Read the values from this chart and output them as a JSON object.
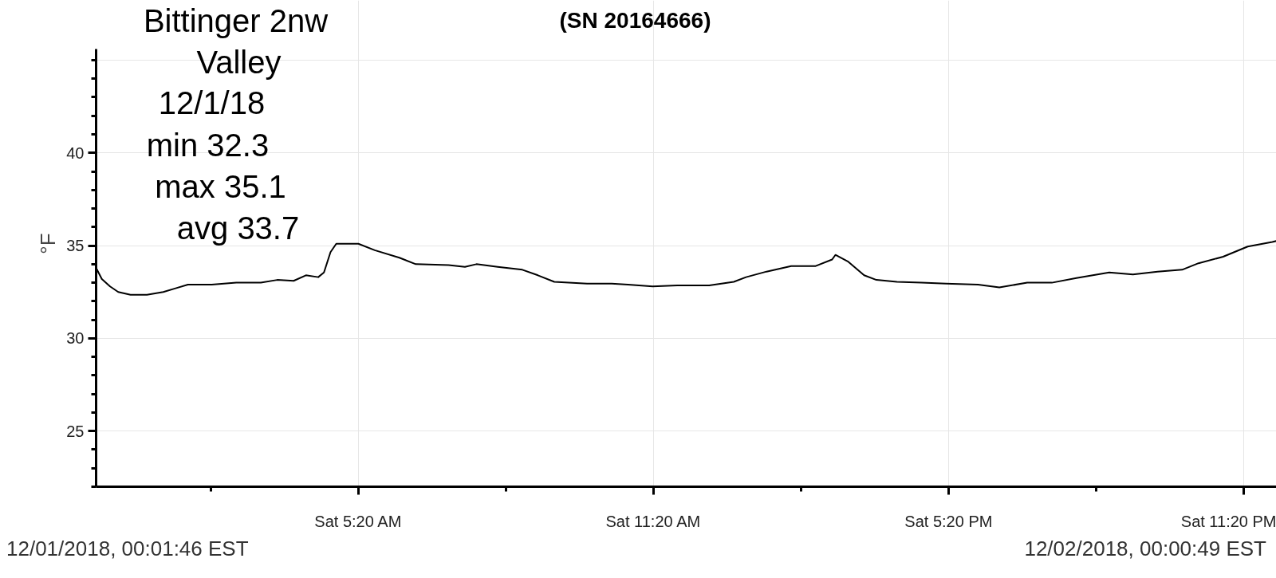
{
  "chart_data": {
    "type": "line",
    "title": "(SN 20164666)",
    "ylabel": "°F",
    "annotations": [
      "Bittinger 2nw",
      "Valley",
      "12/1/18",
      "min 32.3",
      "max 35.1",
      "avg 33.7",
      "12/01/2018, 00:01:46 EST",
      "12/02/2018, 00:00:49 EST"
    ],
    "x": [
      "2018-12-01T00:00",
      "2018-12-01T00:07",
      "2018-12-01T00:17",
      "2018-12-01T00:27",
      "2018-12-01T00:42",
      "2018-12-01T01:02",
      "2018-12-01T01:22",
      "2018-12-01T01:37",
      "2018-12-01T01:52",
      "2018-12-01T02:21",
      "2018-12-01T02:51",
      "2018-12-01T03:21",
      "2018-12-01T03:41",
      "2018-12-01T04:01",
      "2018-12-01T04:16",
      "2018-12-01T04:31",
      "2018-12-01T04:38",
      "2018-12-01T04:46",
      "2018-12-01T04:53",
      "2018-12-01T05:05",
      "2018-12-01T05:20",
      "2018-12-01T05:40",
      "2018-12-01T06:10",
      "2018-12-01T06:30",
      "2018-12-01T07:10",
      "2018-12-01T07:30",
      "2018-12-01T07:44",
      "2018-12-01T08:10",
      "2018-12-01T08:40",
      "2018-12-01T08:59",
      "2018-12-01T09:19",
      "2018-12-01T09:59",
      "2018-12-01T10:29",
      "2018-12-01T10:49",
      "2018-12-01T11:19",
      "2018-12-01T11:49",
      "2018-12-01T12:28",
      "2018-12-01T12:58",
      "2018-12-01T13:13",
      "2018-12-01T13:38",
      "2018-12-01T14:08",
      "2018-12-01T14:38",
      "2018-12-01T14:58",
      "2018-12-01T15:02",
      "2018-12-01T15:17",
      "2018-12-01T15:37",
      "2018-12-01T15:52",
      "2018-12-01T16:17",
      "2018-12-01T16:47",
      "2018-12-01T17:17",
      "2018-12-01T17:56",
      "2018-12-01T18:22",
      "2018-12-01T18:56",
      "2018-12-01T19:26",
      "2018-12-01T19:56",
      "2018-12-01T20:36",
      "2018-12-01T21:05",
      "2018-12-01T21:35",
      "2018-12-01T22:05",
      "2018-12-01T22:25",
      "2018-12-01T22:55",
      "2018-12-01T23:25",
      "2018-12-01T23:55",
      "2018-12-02T00:00"
    ],
    "series": [
      {
        "color": "#000000",
        "values": [
          33.8,
          33.2,
          32.8,
          32.5,
          32.35,
          32.35,
          32.5,
          32.7,
          32.9,
          32.9,
          33.0,
          33.0,
          33.15,
          33.1,
          33.4,
          33.3,
          33.55,
          34.65,
          35.1,
          35.1,
          35.1,
          34.75,
          34.35,
          34.0,
          33.95,
          33.85,
          34.0,
          33.85,
          33.7,
          33.4,
          33.05,
          32.95,
          32.95,
          32.9,
          32.8,
          32.85,
          32.85,
          33.05,
          33.3,
          33.6,
          33.9,
          33.9,
          34.25,
          34.5,
          34.15,
          33.4,
          33.15,
          33.05,
          33.0,
          32.95,
          32.9,
          32.75,
          33.0,
          33.0,
          33.25,
          33.55,
          33.45,
          33.6,
          33.7,
          34.05,
          34.4,
          34.95,
          35.2,
          35.25
        ]
      }
    ],
    "xlim": [
      "2018-12-01T00:00",
      "2018-12-02T00:00"
    ],
    "ylim": [
      22,
      45.6
    ],
    "xticks": [
      {
        "value": "2018-12-01T02:20",
        "label": null
      },
      {
        "value": "2018-12-01T05:20",
        "label": "Sat 5:20 AM"
      },
      {
        "value": "2018-12-01T08:20",
        "label": null
      },
      {
        "value": "2018-12-01T11:20",
        "label": "Sat 11:20 AM"
      },
      {
        "value": "2018-12-01T14:20",
        "label": null
      },
      {
        "value": "2018-12-01T17:20",
        "label": "Sat 5:20 PM"
      },
      {
        "value": "2018-12-01T20:20",
        "label": null
      },
      {
        "value": "2018-12-01T23:20",
        "label": "Sat 11:20 PM"
      }
    ],
    "yticks": [
      25,
      30,
      35,
      40,
      {
        "value": 45,
        "label": null
      }
    ],
    "grid": true,
    "marker": "none",
    "line_style": "solid"
  }
}
